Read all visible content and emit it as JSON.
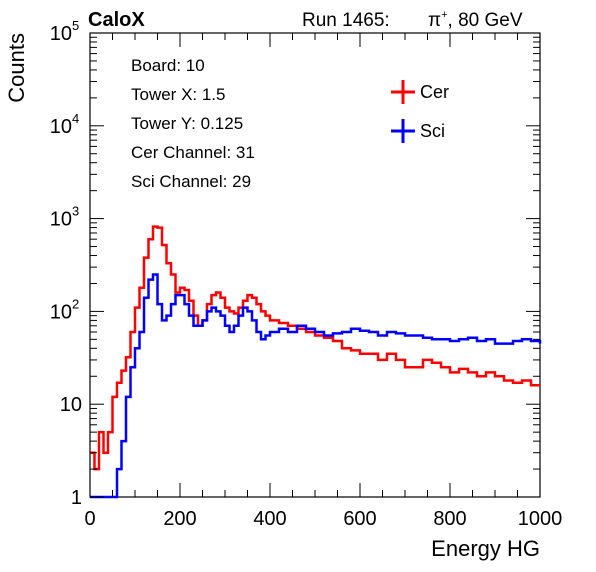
{
  "header": {
    "experiment": "CaloX",
    "run": "Run 1465:",
    "particle_prefix": "π",
    "particle_sup": "+",
    "energy": ", 80 GeV"
  },
  "info_box": [
    "Board: 10",
    "Tower X: 1.5",
    "Tower Y: 0.125",
    "Cer Channel: 31",
    "Sci Channel: 29"
  ],
  "colors": {
    "cer": "#ff0000",
    "sci": "#0000ff",
    "axis": "#000000"
  },
  "chart_data": {
    "type": "line",
    "xlabel": "Energy HG",
    "ylabel": "Counts",
    "xlim": [
      0,
      1000
    ],
    "ylim": [
      1,
      100000
    ],
    "yscale": "log",
    "grid": false,
    "legend": "top-right",
    "x_ticks": [
      0,
      200,
      400,
      600,
      800,
      1000
    ],
    "x_tick_labels": [
      "0",
      "200",
      "400",
      "600",
      "800",
      "1000"
    ],
    "y_ticks": [
      1,
      10,
      100,
      1000,
      10000,
      100000
    ],
    "y_tick_labels": [
      {
        "base": "1",
        "exp": ""
      },
      {
        "base": "10",
        "exp": ""
      },
      {
        "base": "10",
        "exp": "2"
      },
      {
        "base": "10",
        "exp": "3"
      },
      {
        "base": "10",
        "exp": "4"
      },
      {
        "base": "10",
        "exp": "5"
      }
    ],
    "series": [
      {
        "name": "Cer",
        "color": "#ff0000",
        "x": [
          0,
          10,
          20,
          30,
          40,
          50,
          60,
          70,
          80,
          90,
          100,
          110,
          120,
          130,
          140,
          150,
          160,
          170,
          180,
          190,
          200,
          210,
          220,
          230,
          240,
          250,
          260,
          270,
          280,
          290,
          300,
          310,
          320,
          330,
          340,
          350,
          360,
          370,
          380,
          390,
          400,
          420,
          440,
          460,
          480,
          500,
          520,
          540,
          560,
          580,
          600,
          620,
          640,
          660,
          680,
          700,
          720,
          740,
          760,
          780,
          800,
          820,
          840,
          860,
          880,
          900,
          920,
          940,
          960,
          980,
          1000
        ],
        "y": [
          3,
          2,
          5,
          3,
          5,
          12,
          17,
          23,
          32,
          60,
          110,
          180,
          380,
          600,
          820,
          800,
          520,
          330,
          250,
          160,
          180,
          170,
          130,
          90,
          70,
          80,
          120,
          150,
          160,
          140,
          110,
          100,
          95,
          110,
          130,
          150,
          140,
          120,
          100,
          90,
          80,
          75,
          70,
          65,
          60,
          55,
          52,
          48,
          40,
          38,
          35,
          35,
          30,
          35,
          30,
          25,
          25,
          30,
          28,
          25,
          22,
          24,
          22,
          20,
          22,
          20,
          18,
          17,
          18,
          16,
          16
        ]
      },
      {
        "name": "Sci",
        "color": "#0000ff",
        "x": [
          0,
          10,
          20,
          30,
          40,
          50,
          60,
          70,
          80,
          90,
          100,
          110,
          120,
          130,
          140,
          150,
          160,
          170,
          180,
          190,
          200,
          210,
          220,
          230,
          240,
          250,
          260,
          270,
          280,
          290,
          300,
          310,
          320,
          330,
          340,
          350,
          360,
          370,
          380,
          390,
          400,
          420,
          440,
          460,
          480,
          500,
          520,
          540,
          560,
          580,
          600,
          620,
          640,
          660,
          680,
          700,
          720,
          740,
          760,
          780,
          800,
          820,
          840,
          860,
          880,
          900,
          920,
          940,
          960,
          980,
          1000
        ],
        "y": [
          1,
          1,
          1,
          1,
          1,
          1,
          2,
          4,
          12,
          25,
          40,
          60,
          140,
          220,
          250,
          120,
          80,
          90,
          120,
          150,
          150,
          120,
          90,
          70,
          70,
          80,
          100,
          110,
          100,
          90,
          70,
          60,
          70,
          90,
          110,
          100,
          80,
          60,
          50,
          55,
          60,
          65,
          60,
          70,
          65,
          60,
          55,
          58,
          60,
          65,
          62,
          60,
          55,
          60,
          58,
          55,
          55,
          52,
          50,
          50,
          48,
          50,
          52,
          48,
          50,
          45,
          45,
          48,
          50,
          48,
          45
        ]
      }
    ]
  }
}
